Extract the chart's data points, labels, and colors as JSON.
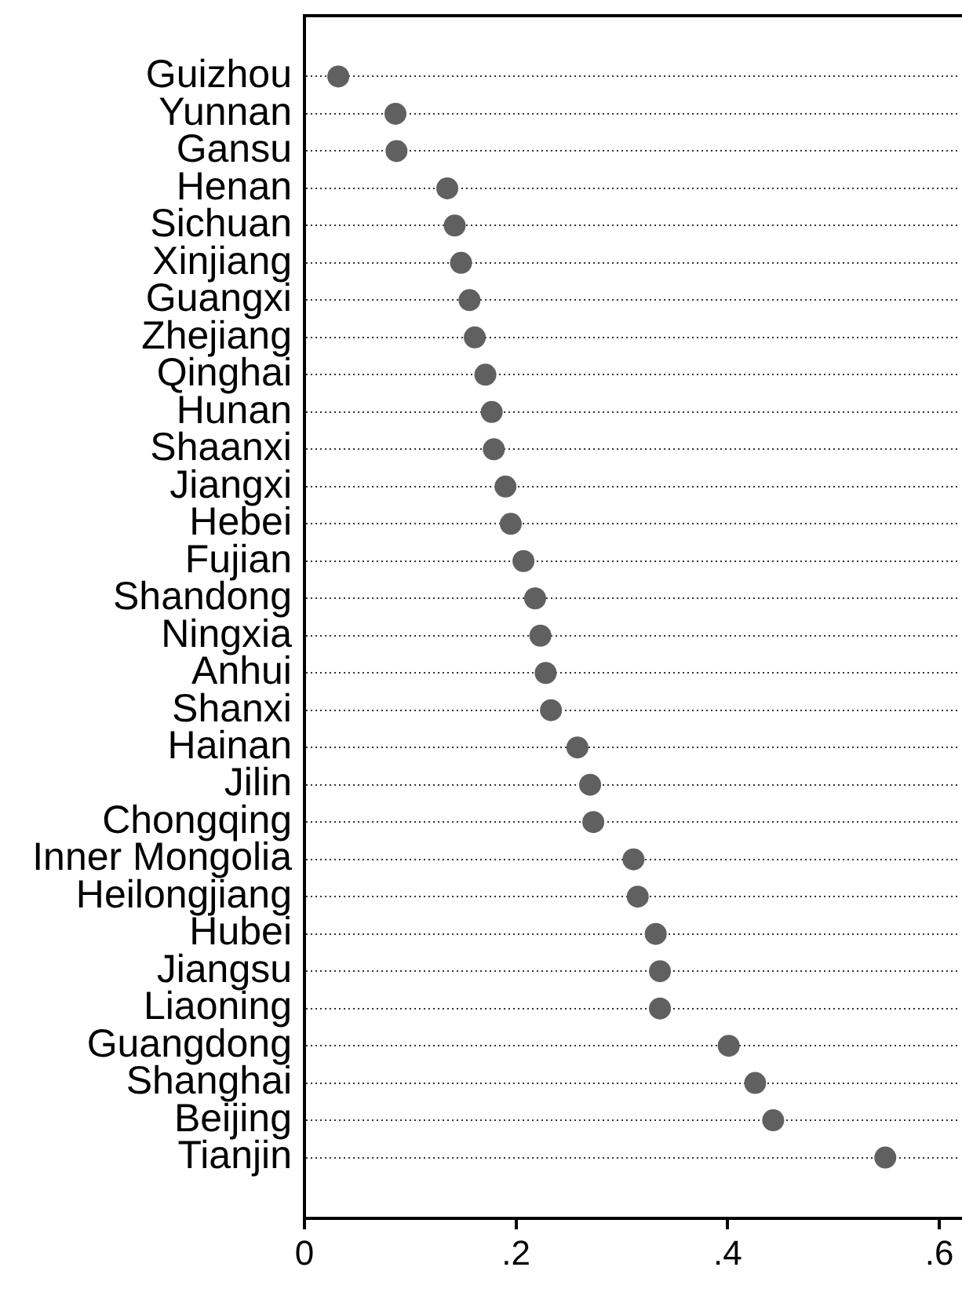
{
  "chart_data": {
    "type": "scatter",
    "orientation": "horizontal",
    "categories": [
      "Guizhou",
      "Yunnan",
      "Gansu",
      "Henan",
      "Sichuan",
      "Xinjiang",
      "Guangxi",
      "Zhejiang",
      "Qinghai",
      "Hunan",
      "Shaanxi",
      "Jiangxi",
      "Hebei",
      "Fujian",
      "Shandong",
      "Ningxia",
      "Anhui",
      "Shanxi",
      "Hainan",
      "Jilin",
      "Chongqing",
      "Inner Mongolia",
      "Heilongjiang",
      "Hubei",
      "Jiangsu",
      "Liaoning",
      "Guangdong",
      "Shanghai",
      "Beijing",
      "Tianjin"
    ],
    "values": [
      0.032,
      0.086,
      0.087,
      0.135,
      0.142,
      0.148,
      0.156,
      0.161,
      0.171,
      0.177,
      0.179,
      0.19,
      0.195,
      0.207,
      0.218,
      0.223,
      0.228,
      0.233,
      0.258,
      0.27,
      0.273,
      0.311,
      0.315,
      0.332,
      0.336,
      0.336,
      0.401,
      0.426,
      0.443,
      0.549
    ],
    "color": "#606060",
    "marker": "circle",
    "xlim": [
      0,
      0.62
    ],
    "xticks": [
      0,
      {
        "value": 0.2,
        "label": ".2"
      },
      {
        "value": 0.4,
        "label": ".4"
      },
      {
        "value": 0.6,
        "label": ".6"
      }
    ],
    "grid": "y"
  }
}
